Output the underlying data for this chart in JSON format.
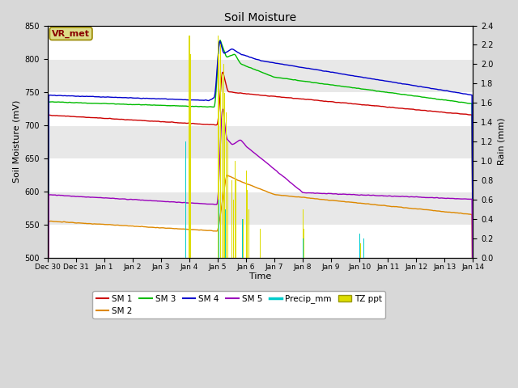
{
  "title": "Soil Moisture",
  "xlabel": "Time",
  "ylabel_left": "Soil Moisture (mV)",
  "ylabel_right": "Rain (mm)",
  "ylim_left": [
    500,
    850
  ],
  "ylim_right": [
    0.0,
    2.4
  ],
  "yticks_left": [
    500,
    550,
    600,
    650,
    700,
    750,
    800,
    850
  ],
  "yticks_right": [
    0.0,
    0.2,
    0.4,
    0.6,
    0.8,
    1.0,
    1.2,
    1.4,
    1.6,
    1.8,
    2.0,
    2.2,
    2.4
  ],
  "bg_color": "#d8d8d8",
  "plot_bg_white": "#ffffff",
  "plot_bg_gray": "#e8e8e8",
  "grid_color": "#ffffff",
  "sm1_color": "#cc0000",
  "sm2_color": "#dd8800",
  "sm3_color": "#00bb00",
  "sm4_color": "#0000cc",
  "sm5_color": "#9900bb",
  "precip_color": "#00cccc",
  "tzppt_color": "#dddd00",
  "annotation_text": "VR_met",
  "annotation_box_color": "#dddd88",
  "annotation_text_color": "#880000",
  "tick_labels": [
    "Dec 30",
    "Dec 31",
    "Jan 1",
    "Jan 2",
    "Jan 3",
    "Jan 4",
    "Jan 5",
    "Jan 6",
    "Jan 7",
    "Jan 8",
    "Jan 9",
    "Jan 10",
    "Jan 11",
    "Jan 12",
    "Jan 13",
    "Jan 14"
  ],
  "n_points": 1440
}
